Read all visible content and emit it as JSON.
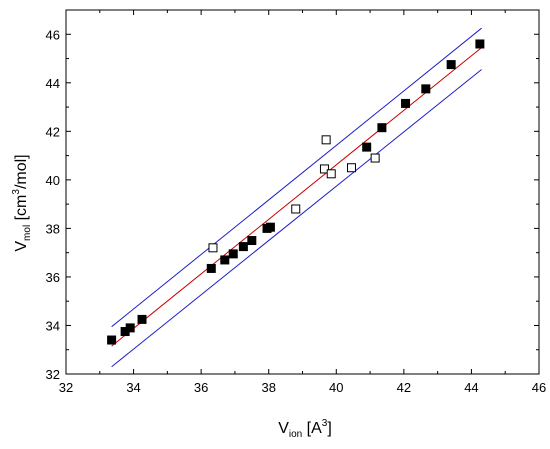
{
  "chart_data": {
    "type": "scatter",
    "title": "",
    "xlabel": {
      "main": "V",
      "sub": "ion",
      "unit_pre": " [A",
      "unit_sup": "3",
      "unit_post": "]"
    },
    "ylabel": {
      "main": "V",
      "sub": "mol",
      "unit_pre": " [cm",
      "unit_sup": "3",
      "unit_post": "/mol]"
    },
    "xlim": [
      32,
      46
    ],
    "ylim": [
      32,
      47
    ],
    "xticks": [
      32,
      34,
      36,
      38,
      40,
      42,
      44,
      46
    ],
    "yticks": [
      32,
      34,
      36,
      38,
      40,
      42,
      44,
      46
    ],
    "grid": false,
    "legend": "none",
    "colors": {
      "fit": "#cc0000",
      "bounds": "#1f1fc8",
      "points": "#000000"
    },
    "series": [
      {
        "marker": "filled-square",
        "points": [
          [
            33.35,
            33.4
          ],
          [
            33.75,
            33.75
          ],
          [
            33.9,
            33.9
          ],
          [
            34.25,
            34.25
          ],
          [
            36.3,
            36.35
          ],
          [
            36.7,
            36.7
          ],
          [
            36.95,
            36.95
          ],
          [
            37.25,
            37.25
          ],
          [
            37.5,
            37.5
          ],
          [
            37.95,
            38.0
          ],
          [
            38.05,
            38.05
          ],
          [
            40.9,
            41.35
          ],
          [
            41.35,
            42.15
          ],
          [
            42.05,
            43.15
          ],
          [
            42.65,
            43.75
          ],
          [
            43.4,
            44.75
          ],
          [
            44.25,
            45.6
          ]
        ]
      },
      {
        "marker": "open-square",
        "points": [
          [
            36.35,
            37.2
          ],
          [
            38.8,
            38.8
          ],
          [
            39.65,
            40.45
          ],
          [
            39.7,
            41.65
          ],
          [
            39.85,
            40.25
          ],
          [
            40.45,
            40.5
          ],
          [
            41.15,
            40.9
          ]
        ]
      }
    ],
    "lines": [
      {
        "role": "fit",
        "x": [
          33.35,
          44.3
        ],
        "y": [
          33.15,
          45.45
        ]
      },
      {
        "role": "upper",
        "x": [
          33.35,
          44.3
        ],
        "y": [
          33.95,
          46.25
        ]
      },
      {
        "role": "lower",
        "x": [
          33.35,
          44.3
        ],
        "y": [
          32.3,
          44.55
        ]
      }
    ]
  }
}
